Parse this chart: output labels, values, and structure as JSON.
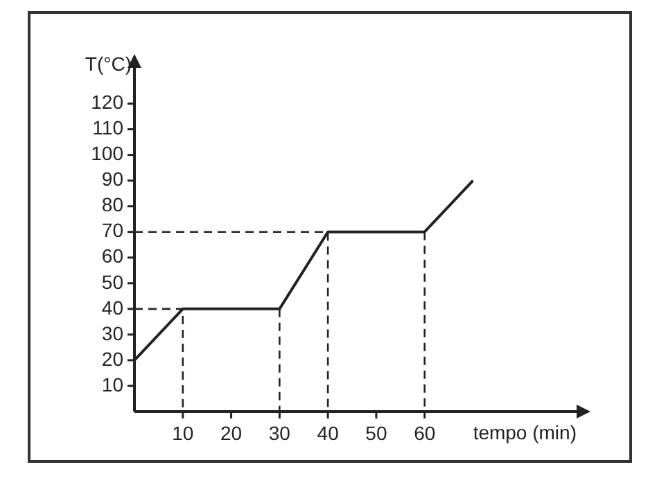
{
  "chart_data": {
    "type": "line",
    "xlabel": "tempo (min)",
    "ylabel": "T(°C)",
    "x": [
      0,
      10,
      30,
      40,
      60,
      70
    ],
    "series": [
      {
        "color": "#222222",
        "values": [
          20,
          40,
          40,
          70,
          70,
          90
        ]
      },
      {
        "color": "#222222",
        "x": [
          0,
          10,
          10
        ],
        "values": [
          40,
          40,
          0
        ],
        "line_style": "dashed"
      },
      {
        "color": "#222222",
        "x": [
          30,
          30
        ],
        "values": [
          40,
          0
        ],
        "line_style": "dashed"
      },
      {
        "color": "#222222",
        "x": [
          0,
          40,
          40
        ],
        "values": [
          70,
          70,
          0
        ],
        "line_style": "dashed"
      },
      {
        "color": "#222222",
        "x": [
          60,
          60
        ],
        "values": [
          70,
          0
        ],
        "line_style": "dashed"
      }
    ],
    "xlim": [
      0,
      92
    ],
    "ylim": [
      0,
      135
    ],
    "xticks": [
      10,
      20,
      30,
      40,
      50,
      60
    ],
    "yticks": [
      10,
      20,
      30,
      40,
      50,
      60,
      70,
      80,
      90,
      100,
      110,
      120
    ],
    "grid": false,
    "legend": false,
    "marker": "none",
    "line_style": "solid"
  }
}
